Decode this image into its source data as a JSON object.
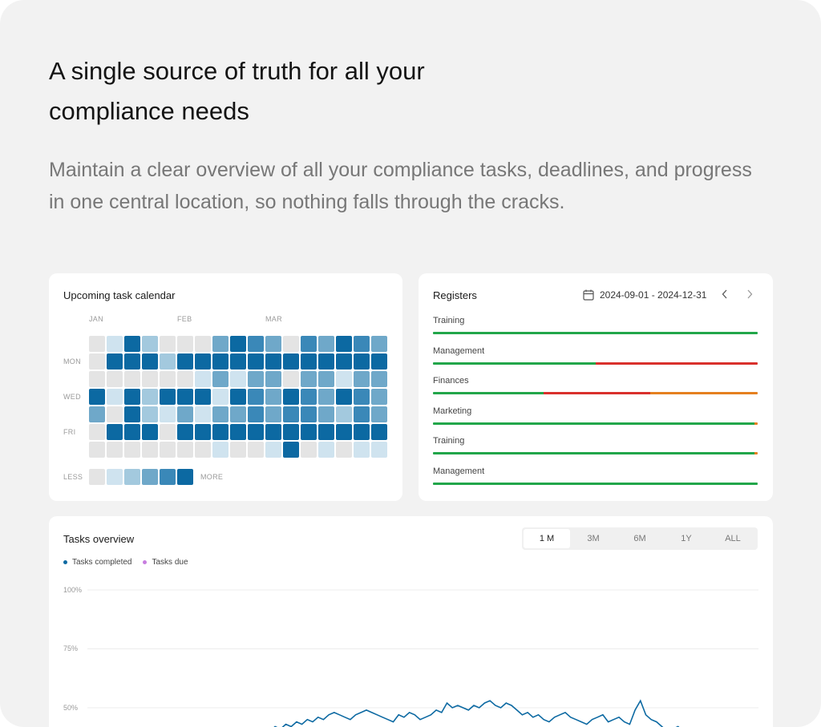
{
  "hero": {
    "title": "A single source of truth for all your compliance needs",
    "subtitle": "Maintain a clear overview of all your compliance tasks, deadlines, and progress in one central location, so nothing falls through the cracks."
  },
  "calendar": {
    "title": "Upcoming task calendar",
    "months": [
      "JAN",
      "FEB",
      "MAR"
    ],
    "day_labels": [
      "MON",
      "WED",
      "FRI"
    ],
    "legend_less": "LESS",
    "legend_more": "MORE",
    "palette": [
      "#e4e4e4",
      "#cfe3ef",
      "#a3c9de",
      "#6fa8c9",
      "#3a88b8",
      "#0c69a2"
    ],
    "grid": [
      [
        0,
        1,
        5,
        2,
        0,
        0,
        0,
        3,
        5,
        4,
        3,
        0,
        4,
        3,
        5,
        4,
        3
      ],
      [
        0,
        5,
        5,
        5,
        2,
        5,
        5,
        5,
        5,
        5,
        5,
        5,
        5,
        5,
        5,
        5,
        5
      ],
      [
        0,
        0,
        0,
        0,
        0,
        0,
        1,
        3,
        1,
        3,
        3,
        0,
        3,
        3,
        1,
        3,
        3
      ],
      [
        5,
        1,
        5,
        2,
        5,
        5,
        5,
        1,
        5,
        4,
        3,
        5,
        4,
        3,
        5,
        4,
        3
      ],
      [
        3,
        0,
        5,
        2,
        1,
        3,
        1,
        3,
        3,
        4,
        3,
        4,
        4,
        3,
        2,
        4,
        3
      ],
      [
        0,
        5,
        5,
        5,
        0,
        5,
        5,
        5,
        5,
        5,
        5,
        5,
        5,
        5,
        5,
        5,
        5
      ],
      [
        0,
        0,
        0,
        0,
        0,
        0,
        0,
        1,
        0,
        0,
        1,
        5,
        0,
        1,
        0,
        1,
        1
      ]
    ],
    "legend_levels": [
      0,
      1,
      2,
      3,
      4,
      5
    ]
  },
  "registers": {
    "title": "Registers",
    "date_range": "2024-09-01 - 2024-12-31",
    "colors": {
      "green": "#22a64a",
      "red": "#d9302c",
      "orange": "#e5801f"
    },
    "items": [
      {
        "label": "Training",
        "segments": [
          {
            "color": "green",
            "fraction": 1.0
          }
        ]
      },
      {
        "label": "Management",
        "segments": [
          {
            "color": "green",
            "fraction": 0.5
          },
          {
            "color": "red",
            "fraction": 0.5
          }
        ]
      },
      {
        "label": "Finances",
        "segments": [
          {
            "color": "green",
            "fraction": 0.34
          },
          {
            "color": "red",
            "fraction": 0.33
          },
          {
            "color": "orange",
            "fraction": 0.33
          }
        ]
      },
      {
        "label": "Marketing",
        "segments": [
          {
            "color": "green",
            "fraction": 0.99
          },
          {
            "color": "orange",
            "fraction": 0.01
          }
        ]
      },
      {
        "label": "Training",
        "segments": [
          {
            "color": "green",
            "fraction": 0.99
          },
          {
            "color": "orange",
            "fraction": 0.01
          }
        ]
      },
      {
        "label": "Management",
        "segments": [
          {
            "color": "green",
            "fraction": 1.0
          }
        ]
      }
    ]
  },
  "tasks_overview": {
    "title": "Tasks overview",
    "ranges": [
      "1 M",
      "3M",
      "6M",
      "1Y",
      "ALL"
    ],
    "active_range": "1 M",
    "legend": [
      {
        "label": "Tasks completed",
        "color": "#0c69a2"
      },
      {
        "label": "Tasks due",
        "color": "#c77ddf"
      }
    ],
    "y_ticks": [
      "100%",
      "75%",
      "50%"
    ],
    "chart_data": {
      "type": "line",
      "title": "",
      "xlabel": "",
      "ylabel": "",
      "ylim": [
        0,
        100
      ],
      "grid": true,
      "legend": "top-left",
      "series": [
        {
          "name": "Tasks completed",
          "values": [
            40,
            41,
            40,
            42,
            41,
            43,
            42,
            44,
            43,
            45,
            44,
            46,
            45,
            47,
            48,
            47,
            46,
            45,
            47,
            48,
            49,
            48,
            47,
            46,
            45,
            44,
            47,
            46,
            48,
            47,
            45,
            46,
            47,
            49,
            48,
            52,
            50,
            51,
            50,
            49,
            51,
            50,
            52,
            53,
            51,
            50,
            52,
            51,
            49,
            47,
            48,
            46,
            47,
            45,
            44,
            46,
            47,
            48,
            46,
            45,
            44,
            43,
            45,
            46,
            47,
            44,
            45,
            46,
            44,
            43,
            49,
            53,
            47,
            45,
            44,
            42,
            40,
            41,
            42,
            40,
            41,
            40,
            39,
            40,
            41,
            40,
            39,
            40
          ]
        }
      ]
    }
  }
}
